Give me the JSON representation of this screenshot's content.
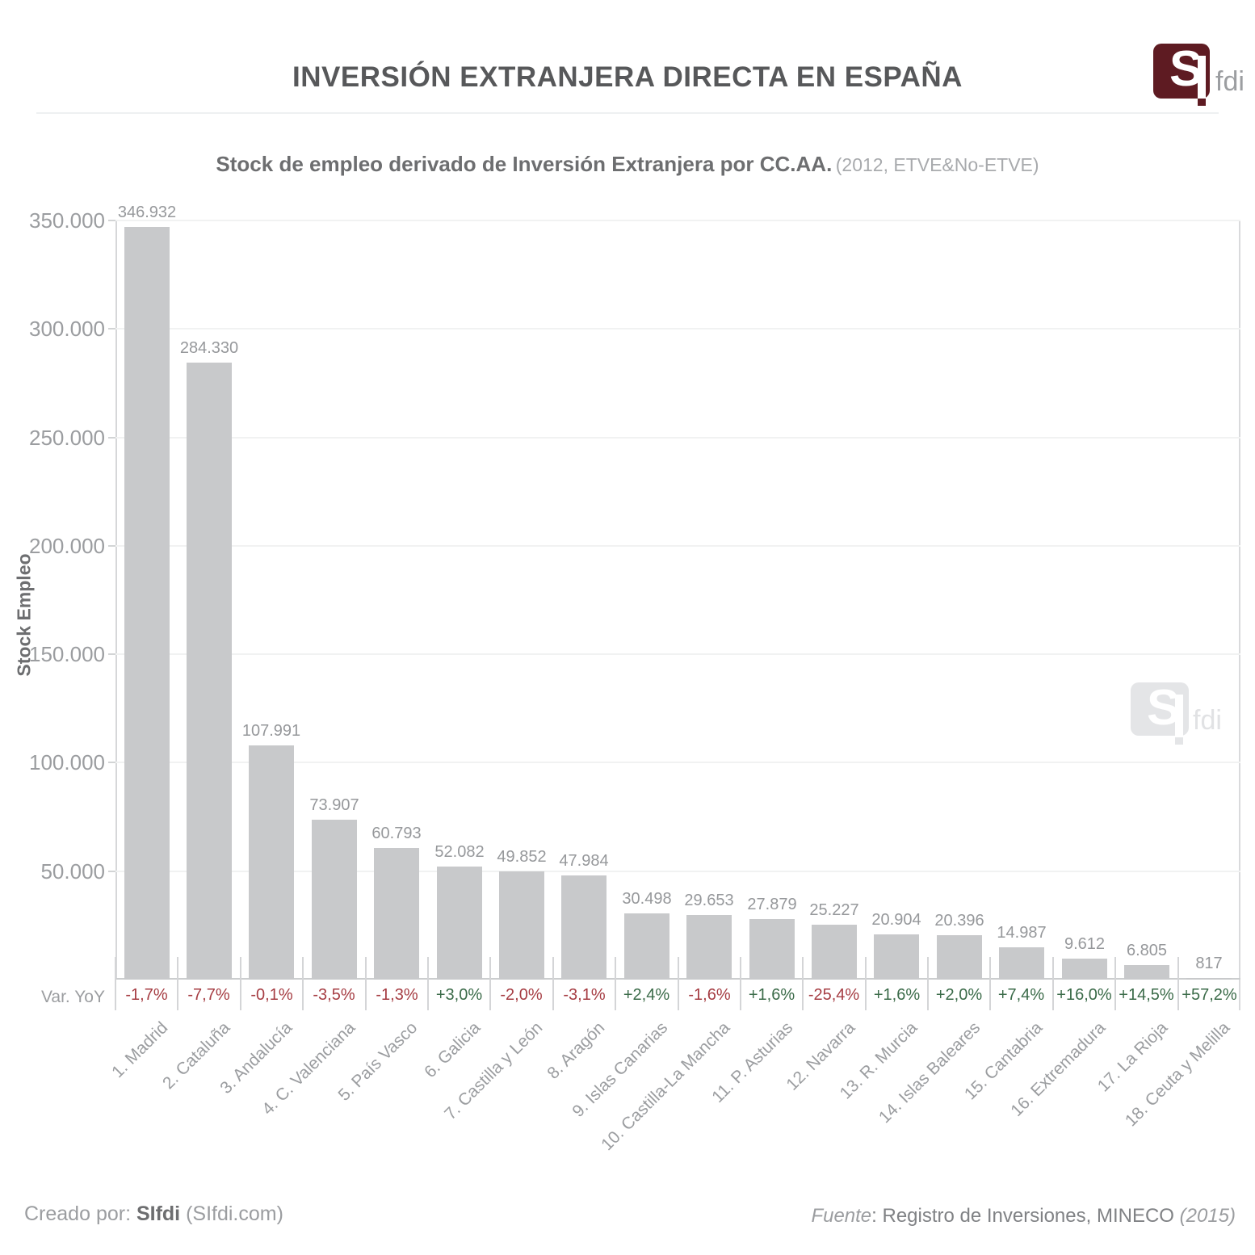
{
  "header": {
    "title": "INVERSIÓN EXTRANJERA DIRECTA EN ESPAÑA",
    "logo": {
      "s": "S",
      "fdi": "fdi",
      "brand_color": "#5e1b22"
    }
  },
  "chart_data": {
    "type": "bar",
    "title": "Stock de empleo derivado de Inversión Extranjera por CC.AA.",
    "title_note": "(2012, ETVE&No-ETVE)",
    "ylabel": "Stock Empleo",
    "ylim": [
      0,
      350000
    ],
    "grid": true,
    "yticks": [
      350000,
      300000,
      250000,
      200000,
      150000,
      100000,
      50000
    ],
    "ytick_labels": [
      "350.000",
      "300.000",
      "250.000",
      "200.000",
      "150.000",
      "100.000",
      "50.000"
    ],
    "categories": [
      "1. Madrid",
      "2. Cataluña",
      "3. Andalucía",
      "4. C. Valenciana",
      "5. País Vasco",
      "6. Galicia",
      "7. Castilla y León",
      "8. Aragón",
      "9. Islas Canarias",
      "10. Castilla-La Mancha",
      "11. P. Asturias",
      "12. Navarra",
      "13. R. Murcia",
      "14. Islas Baleares",
      "15. Cantabria",
      "16. Extremadura",
      "17. La Rioja",
      "18. Ceuta y Melilla"
    ],
    "values": [
      346932,
      284330,
      107991,
      73907,
      60793,
      52082,
      49852,
      47984,
      30498,
      29653,
      27879,
      25227,
      20904,
      20396,
      14987,
      9612,
      6805,
      817
    ],
    "value_labels": [
      "346.932",
      "284.330",
      "107.991",
      "73.907",
      "60.793",
      "52.082",
      "49.852",
      "47.984",
      "30.498",
      "29.653",
      "27.879",
      "25.227",
      "20.904",
      "20.396",
      "14.987",
      "9.612",
      "6.805",
      "817"
    ],
    "yoy_row_label": "Var. YoY",
    "yoy": [
      "-1,7%",
      "-7,7%",
      "-0,1%",
      "-3,5%",
      "-1,3%",
      "+3,0%",
      "-2,0%",
      "-3,1%",
      "+2,4%",
      "-1,6%",
      "+1,6%",
      "-25,4%",
      "+1,6%",
      "+2,0%",
      "+7,4%",
      "+16,0%",
      "+14,5%",
      "+57,2%"
    ],
    "colors": {
      "bar": "#c8c9cb",
      "negative": "#a63d43",
      "positive": "#3b6b49"
    },
    "legend": "none"
  },
  "watermark": {
    "s": "S",
    "fdi": "fdi"
  },
  "footer": {
    "created_prefix": "Creado por: ",
    "created_name": "SIfdi",
    "created_suffix": " (SIfdi.com)",
    "source_label": "Fuente",
    "source_text": ": Registro de Inversiones, MINECO ",
    "source_year": "(2015)"
  }
}
